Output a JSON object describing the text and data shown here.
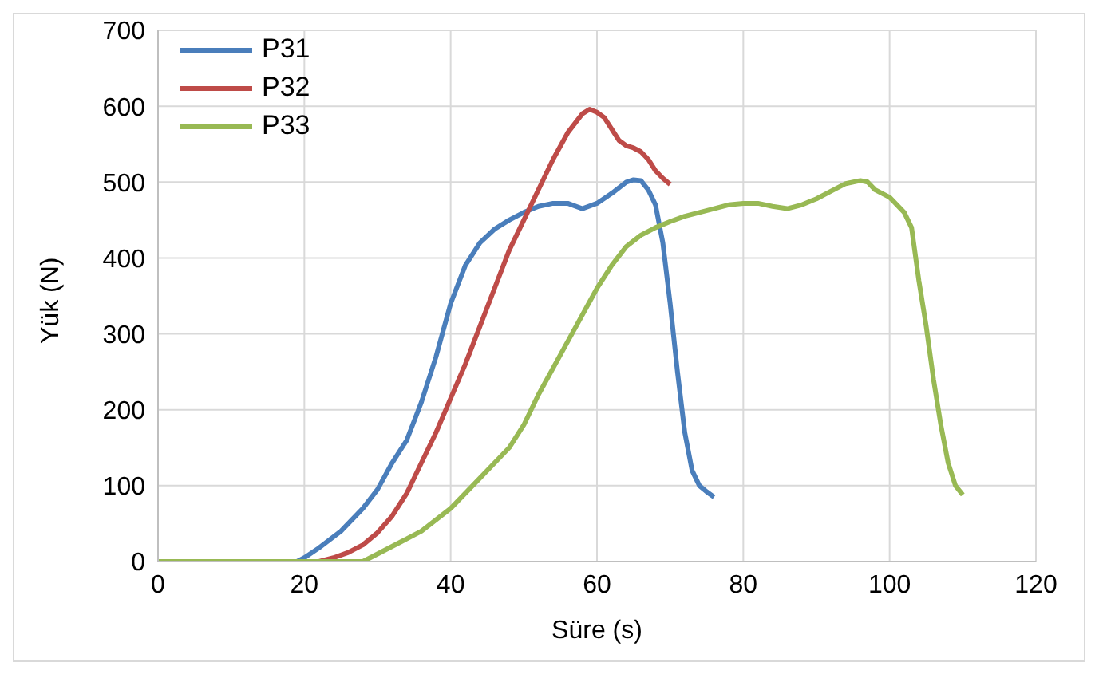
{
  "chart_data": {
    "type": "line",
    "xlabel": "Süre (s)",
    "ylabel": "Yük (N)",
    "xlim": [
      0,
      120
    ],
    "xticks": [
      0,
      20,
      40,
      60,
      80,
      100,
      120
    ],
    "ylim": [
      0,
      700
    ],
    "yticks": [
      0,
      100,
      200,
      300,
      400,
      500,
      600,
      700
    ],
    "grid": true,
    "legend": "top left",
    "marker": "none",
    "line_style": "solid",
    "series": [
      {
        "name": "P31",
        "color": "#4a7ebb",
        "x": [
          0,
          19,
          20,
          22,
          25,
          28,
          30,
          32,
          34,
          36,
          38,
          40,
          42,
          44,
          46,
          48,
          50,
          52,
          54,
          56,
          58,
          60,
          62,
          64,
          65,
          66,
          67,
          68,
          69,
          70,
          71,
          72,
          73,
          74,
          75,
          76
        ],
        "values": [
          0,
          0,
          5,
          18,
          40,
          70,
          95,
          130,
          160,
          210,
          270,
          340,
          390,
          420,
          438,
          450,
          460,
          468,
          472,
          472,
          465,
          472,
          485,
          500,
          503,
          502,
          490,
          470,
          420,
          340,
          250,
          170,
          120,
          100,
          92,
          85
        ]
      },
      {
        "name": "P32",
        "color": "#be4b48",
        "x": [
          0,
          22,
          24,
          26,
          28,
          30,
          32,
          34,
          36,
          38,
          40,
          42,
          44,
          46,
          48,
          50,
          52,
          54,
          56,
          58,
          59,
          60,
          61,
          62,
          63,
          64,
          65,
          66,
          67,
          68,
          69,
          70
        ],
        "values": [
          0,
          0,
          5,
          12,
          22,
          38,
          60,
          90,
          130,
          170,
          215,
          260,
          310,
          360,
          410,
          450,
          490,
          530,
          565,
          590,
          596,
          592,
          585,
          570,
          555,
          548,
          545,
          540,
          530,
          515,
          505,
          497
        ]
      },
      {
        "name": "P33",
        "color": "#98b954",
        "x": [
          0,
          28,
          30,
          33,
          36,
          40,
          44,
          48,
          50,
          52,
          56,
          60,
          62,
          64,
          66,
          68,
          70,
          72,
          74,
          76,
          78,
          80,
          82,
          84,
          86,
          88,
          90,
          92,
          94,
          96,
          97,
          98,
          100,
          102,
          103,
          104,
          105,
          106,
          107,
          108,
          109,
          110
        ],
        "values": [
          0,
          0,
          10,
          25,
          40,
          70,
          110,
          150,
          180,
          220,
          290,
          360,
          390,
          415,
          430,
          440,
          448,
          455,
          460,
          465,
          470,
          472,
          472,
          468,
          465,
          470,
          478,
          488,
          498,
          502,
          500,
          490,
          480,
          460,
          440,
          370,
          310,
          240,
          180,
          130,
          100,
          88
        ]
      }
    ]
  }
}
